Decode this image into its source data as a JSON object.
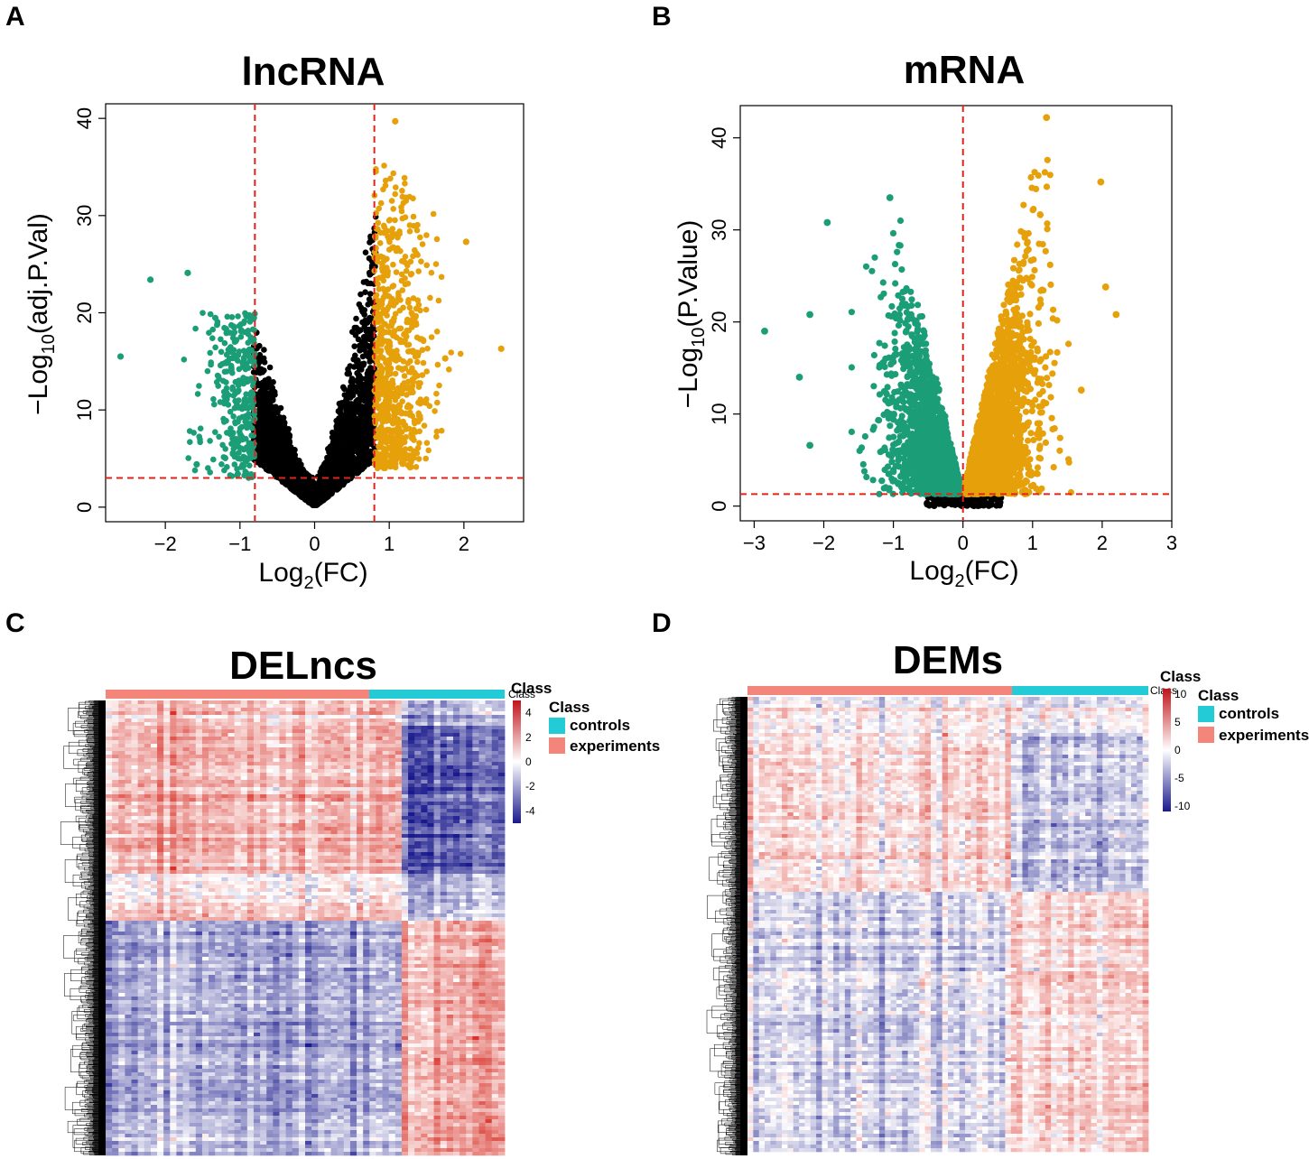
{
  "panel_labels": [
    "A",
    "B",
    "C",
    "D"
  ],
  "colors": {
    "down": "#1b9e77",
    "up": "#e6a00a",
    "ns": "#000000",
    "threshold": "#e0231b",
    "controls": "#22cbd6",
    "experiments": "#f4857a",
    "heat_high": "#d73027",
    "heat_mid": "#ffffff",
    "heat_low": "#1a1a8c"
  },
  "chart_data": [
    {
      "type": "scatter",
      "panel": "A",
      "title": "lncRNA",
      "xlabel_main": "Log",
      "xlabel_sub": "2",
      "xlabel_rest": "(FC)",
      "ylabel_main": "−Log",
      "ylabel_sub": "10",
      "ylabel_rest": "(adj.P.Val)",
      "xlim": [
        -2.8,
        2.8
      ],
      "ylim": [
        -1.5,
        41.5
      ],
      "xticks": [
        -2,
        -1,
        0,
        1,
        2
      ],
      "yticks": [
        0,
        10,
        20,
        30,
        40
      ],
      "tick_labels_x": [
        "−2",
        "−1",
        "0",
        "1",
        "2"
      ],
      "tick_labels_y": [
        "0",
        "10",
        "20",
        "30",
        "40"
      ],
      "vlines": [
        -0.8,
        0.8
      ],
      "hline": 3,
      "series": [
        {
          "name": "down",
          "x_range": [
            -1.75,
            -0.8
          ],
          "y_max": 21.5
        },
        {
          "name": "up",
          "x_range": [
            0.8,
            2.0
          ],
          "y_max": 39.7
        },
        {
          "name": "not significant",
          "x_range": [
            -0.85,
            0.85
          ],
          "y_max": 32
        }
      ],
      "outliers": [
        {
          "x": -2.6,
          "y": 15.5
        },
        {
          "x": -2.2,
          "y": 23.4
        },
        {
          "x": -1.7,
          "y": 24.1
        },
        {
          "x": -1.58,
          "y": 4.4
        },
        {
          "x": 2.5,
          "y": 16.3
        },
        {
          "x": 2.03,
          "y": 27.3
        },
        {
          "x": 1.75,
          "y": 15.3
        },
        {
          "x": 1.08,
          "y": 39.7
        }
      ]
    },
    {
      "type": "scatter",
      "panel": "B",
      "title": "mRNA",
      "xlabel_main": "Log",
      "xlabel_sub": "2",
      "xlabel_rest": "(FC)",
      "ylabel_main": "−Log",
      "ylabel_sub": "10",
      "ylabel_rest": "(P.Value)",
      "xlim": [
        -3.2,
        3.0
      ],
      "ylim": [
        -1.6,
        43.5
      ],
      "xticks": [
        -3,
        -2,
        -1,
        0,
        1,
        2,
        3
      ],
      "yticks": [
        0,
        10,
        20,
        30,
        40
      ],
      "tick_labels_x": [
        "−3",
        "−2",
        "−1",
        "0",
        "1",
        "2",
        "3"
      ],
      "tick_labels_y": [
        "0",
        "10",
        "20",
        "30",
        "40"
      ],
      "vlines": [
        0
      ],
      "hline": 1.3,
      "series": [
        {
          "name": "down",
          "x_range": [
            -1.5,
            0
          ],
          "y_max": 29.5
        },
        {
          "name": "up",
          "x_range": [
            0,
            1.6
          ],
          "y_max": 42
        }
      ],
      "outliers": [
        {
          "x": -2.85,
          "y": 19
        },
        {
          "x": -2.2,
          "y": 6.6
        },
        {
          "x": -2.2,
          "y": 20.8
        },
        {
          "x": -1.95,
          "y": 30.8
        },
        {
          "x": -2.35,
          "y": 14
        },
        {
          "x": -1.05,
          "y": 33.5
        },
        {
          "x": 2.2,
          "y": 20.8
        },
        {
          "x": 2.05,
          "y": 23.8
        },
        {
          "x": 1.98,
          "y": 35.2
        },
        {
          "x": 1.2,
          "y": 42.2
        },
        {
          "x": 1.7,
          "y": 12.6
        }
      ]
    },
    {
      "type": "heatmap",
      "panel": "C",
      "title": "DELncs",
      "annotation_title": "Class",
      "legend_title": "Class",
      "classes": [
        "controls",
        "experiments"
      ],
      "n_experiments": 46,
      "n_controls": 16,
      "scale_ticks": [
        4,
        2,
        0,
        -2,
        -4
      ],
      "scale_tick_labels": [
        "4",
        "2",
        "0",
        "-2",
        "-4"
      ],
      "scale_range": [
        -5,
        5
      ],
      "row_blocks": [
        {
          "fraction": 0.055,
          "experiments": 0.25,
          "controls": -0.3
        },
        {
          "fraction": 0.325,
          "experiments": 0.35,
          "controls": -0.65
        },
        {
          "fraction": 0.06,
          "experiments": 0.05,
          "controls": -0.3
        },
        {
          "fraction": 0.04,
          "experiments": 0.25,
          "controls": -0.2
        },
        {
          "fraction": 0.52,
          "experiments": -0.35,
          "controls": 0.45
        }
      ]
    },
    {
      "type": "heatmap",
      "panel": "D",
      "title": "DEMs",
      "annotation_title": "Class",
      "legend_title": "Class",
      "classes": [
        "controls",
        "experiments"
      ],
      "n_experiments": 46,
      "n_controls": 24,
      "scale_ticks": [
        10,
        5,
        0,
        -5,
        -10
      ],
      "scale_tick_labels": [
        "10",
        "5",
        "0",
        "-5",
        "-10"
      ],
      "scale_range": [
        -11,
        11
      ],
      "row_blocks": [
        {
          "fraction": 0.08,
          "experiments": 0.05,
          "controls": -0.05
        },
        {
          "fraction": 0.35,
          "experiments": 0.18,
          "controls": -0.28
        },
        {
          "fraction": 0.57,
          "experiments": -0.15,
          "controls": 0.18
        }
      ]
    }
  ]
}
